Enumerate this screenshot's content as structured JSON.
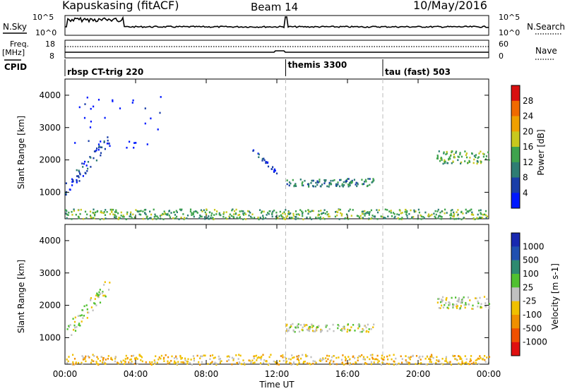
{
  "header": {
    "station": "Kapuskasing (fitACF)",
    "beam": "Beam 14",
    "date": "10/May/2016"
  },
  "panels": {
    "nsky_label": "N.Sky",
    "nsky_ticks": [
      "10^5",
      "10^0"
    ],
    "nsearch_label": "N.Search",
    "nsearch_ticks": [
      "10^5",
      "10^0"
    ],
    "freq_label": "Freq.",
    "freq_unit": "[MHz]",
    "freq_ticks": [
      "18",
      "8"
    ],
    "nave_label": "Nave",
    "nave_ticks": [
      "60",
      "0"
    ],
    "cpid_label": "CPID",
    "cpid_segments": [
      {
        "label": "rbsp CT-trig 220",
        "start_hr": 0.0
      },
      {
        "label": "themis 3300",
        "start_hr": 12.5
      },
      {
        "label": "tau (fast) 503",
        "start_hr": 18.0
      }
    ]
  },
  "chart_data": [
    {
      "type": "scatter",
      "title": "Power",
      "ylabel": "Slant Range [km]",
      "xlabel": "Time UT",
      "xlim": [
        0,
        24
      ],
      "ylim": [
        180,
        4500
      ],
      "x_ticks": [
        "00:00",
        "04:00",
        "08:00",
        "12:00",
        "16:00",
        "20:00",
        "00:00"
      ],
      "y_ticks": [
        1000,
        2000,
        3000,
        4000
      ],
      "colorbar": {
        "label": "Power [dB]",
        "ticks": [
          "4",
          "8",
          "12",
          "16",
          "20",
          "24",
          "28"
        ],
        "colors": [
          "#0018ff",
          "#1a3ea8",
          "#2e7d73",
          "#3fa34d",
          "#c8c81e",
          "#f0a000",
          "#f06a00",
          "#d81010"
        ]
      },
      "regions": [
        {
          "name": "early-diagonal",
          "t0": 0.0,
          "t1": 2.5,
          "r0": 1100,
          "r1": 2700,
          "color_index": 1,
          "density": 0.6
        },
        {
          "name": "early-scatter",
          "t0": 0.5,
          "t1": 5.5,
          "r0": 2400,
          "r1": 4000,
          "color_index": 0,
          "density": 0.15
        },
        {
          "name": "near-range",
          "t0": 0.0,
          "t1": 24.0,
          "r0": 190,
          "r1": 500,
          "color_index": 3,
          "density": 0.55
        },
        {
          "name": "midday-descend",
          "t0": 10.5,
          "t1": 12.0,
          "r0": 1600,
          "r1": 2400,
          "color_index": 1,
          "density": 0.4
        },
        {
          "name": "afternoon-band",
          "t0": 12.5,
          "t1": 17.5,
          "r0": 1200,
          "r1": 1450,
          "color_index": 2,
          "density": 0.55
        },
        {
          "name": "late-band",
          "t0": 21.0,
          "t1": 24.0,
          "r0": 1900,
          "r1": 2300,
          "color_index": 3,
          "density": 0.7
        }
      ]
    },
    {
      "type": "scatter",
      "title": "Velocity",
      "ylabel": "Slant Range [km]",
      "xlabel": "Time UT",
      "xlim": [
        0,
        24
      ],
      "ylim": [
        180,
        4500
      ],
      "x_ticks": [
        "00:00",
        "04:00",
        "08:00",
        "12:00",
        "16:00",
        "20:00",
        "00:00"
      ],
      "y_ticks": [
        1000,
        2000,
        3000,
        4000
      ],
      "colorbar": {
        "label": "Velocity [m s-1]",
        "ticks": [
          "1000",
          "500",
          "100",
          "25",
          "-25",
          "-100",
          "-500",
          "-1000"
        ],
        "colors": [
          "#1828b0",
          "#2050b0",
          "#2e8a70",
          "#50c030",
          "#c0c0c0",
          "#f0c000",
          "#f09000",
          "#f05000",
          "#e01010"
        ]
      },
      "regions": [
        {
          "name": "early-diagonal",
          "t0": 0.0,
          "t1": 2.5,
          "r0": 1100,
          "r1": 2700,
          "color_index": 4,
          "density": 0.6
        },
        {
          "name": "near-range",
          "t0": 0.0,
          "t1": 24.0,
          "r0": 190,
          "r1": 500,
          "color_index": 5,
          "density": 0.5
        },
        {
          "name": "afternoon-band",
          "t0": 12.5,
          "t1": 17.5,
          "r0": 1200,
          "r1": 1450,
          "color_index": 4,
          "density": 0.55
        },
        {
          "name": "late-band",
          "t0": 21.0,
          "t1": 24.0,
          "r0": 1900,
          "r1": 2300,
          "color_index": 4,
          "density": 0.7
        }
      ]
    }
  ]
}
